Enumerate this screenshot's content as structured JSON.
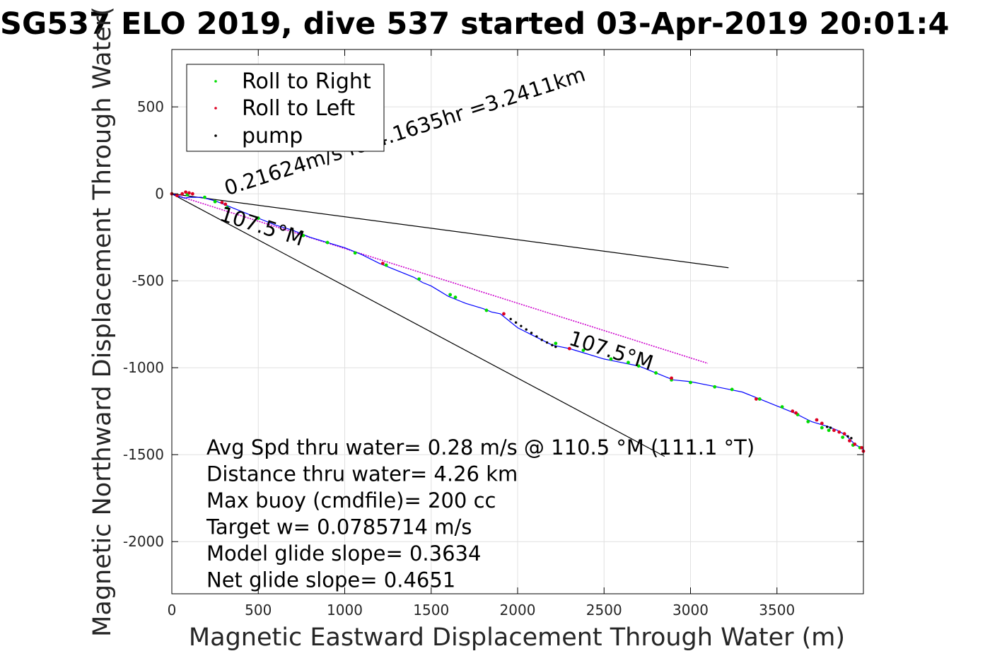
{
  "chart_data": {
    "type": "line",
    "title": "SG537 ELO 2019, dive 537 started 03-Apr-2019 20:01:4",
    "xlabel": "Magnetic Eastward Displacement Through Water (m)",
    "ylabel": "Magnetic Northward Displacement Through Water(",
    "xlim": [
      0,
      4000
    ],
    "ylim": [
      -2300,
      830
    ],
    "xticks": [
      0,
      500,
      1000,
      1500,
      2000,
      2500,
      3000,
      3500
    ],
    "xtick_labels": [
      "0",
      "500",
      "1000",
      "1500",
      "2000",
      "2500",
      "3000",
      "3500"
    ],
    "yticks": [
      500,
      0,
      -500,
      -1000,
      -1500,
      -2000
    ],
    "ytick_labels": [
      "500",
      "0",
      "-500",
      "-1000",
      "-1500",
      "-2000"
    ],
    "grid": true,
    "legend_position": "top-left",
    "colors": {
      "track": "#0000ff",
      "roll_right": "#00dd00",
      "roll_left": "#dd0022",
      "pump": "#000000",
      "heading_lines": "#000000",
      "target_line": "#cc00cc"
    },
    "legend": [
      {
        "label": "Roll to Right",
        "color": "#00dd00"
      },
      {
        "label": "Roll to Left",
        "color": "#dd0022"
      },
      {
        "label": "pump",
        "color": "#000000"
      }
    ],
    "series": [
      {
        "name": "track",
        "x": [
          0,
          40,
          75,
          100,
          130,
          170,
          250,
          300,
          400,
          500,
          600,
          700,
          800,
          900,
          1000,
          1100,
          1200,
          1300,
          1400,
          1450,
          1500,
          1550,
          1600,
          1650,
          1700,
          1800,
          1850,
          1900,
          1950,
          2000,
          2100,
          2200,
          2250,
          2300,
          2400,
          2500,
          2600,
          2700,
          2800,
          2900,
          3000,
          3100,
          3200,
          3300,
          3400,
          3500,
          3600,
          3700,
          3800,
          3850,
          3900,
          3950,
          4000
        ],
        "y": [
          0,
          -15,
          -25,
          -20,
          -20,
          -20,
          -40,
          -60,
          -100,
          -140,
          -180,
          -210,
          -250,
          -280,
          -310,
          -350,
          -400,
          -440,
          -480,
          -510,
          -530,
          -560,
          -590,
          -610,
          -630,
          -660,
          -680,
          -690,
          -730,
          -770,
          -820,
          -870,
          -880,
          -890,
          -920,
          -950,
          -970,
          -990,
          -1030,
          -1070,
          -1080,
          -1100,
          -1120,
          -1140,
          -1180,
          -1220,
          -1260,
          -1310,
          -1340,
          -1360,
          -1390,
          -1440,
          -1470
        ]
      },
      {
        "name": "Roll to Right",
        "x": [
          0,
          90,
          190,
          250,
          320,
          500,
          760,
          900,
          1060,
          1240,
          1430,
          1610,
          1640,
          1820,
          2220,
          2380,
          2540,
          2640,
          2700,
          2800,
          2890,
          3000,
          3140,
          3240,
          3400,
          3530,
          3620,
          3680,
          3760,
          3800,
          3880,
          3940,
          3980
        ],
        "y": [
          0,
          -5,
          -20,
          -45,
          -80,
          -140,
          -240,
          -280,
          -340,
          -410,
          -490,
          -580,
          -595,
          -670,
          -860,
          -900,
          -950,
          -970,
          -990,
          -1030,
          -1070,
          -1085,
          -1110,
          -1125,
          -1180,
          -1225,
          -1270,
          -1310,
          -1345,
          -1360,
          -1400,
          -1445,
          -1460
        ]
      },
      {
        "name": "Roll to Left",
        "x": [
          0,
          30,
          60,
          80,
          100,
          120,
          290,
          310,
          1220,
          1920,
          2300,
          2890,
          3380,
          3590,
          3610,
          3730,
          3760,
          3830,
          3860,
          3890,
          3920,
          3950,
          3990,
          4000
        ],
        "y": [
          0,
          -10,
          0,
          10,
          5,
          0,
          -50,
          -60,
          -400,
          -690,
          -890,
          -1060,
          -1180,
          -1250,
          -1260,
          -1300,
          -1320,
          -1360,
          -1370,
          -1380,
          -1420,
          -1440,
          -1460,
          -1480
        ]
      },
      {
        "name": "pump",
        "x": [
          1960,
          1990,
          2020,
          2050,
          2080,
          2110,
          2140,
          2170,
          2200,
          2220,
          3790,
          3810,
          3910,
          3930
        ],
        "y": [
          -720,
          -740,
          -760,
          -780,
          -800,
          -820,
          -840,
          -855,
          -870,
          -880,
          -1340,
          -1345,
          -1395,
          -1405
        ]
      }
    ],
    "reference_lines": [
      {
        "name": "heading-line-upper",
        "x": [
          0,
          3220
        ],
        "y": [
          0,
          -425
        ]
      },
      {
        "name": "heading-line-lower",
        "x": [
          0,
          2850
        ],
        "y": [
          0,
          -1510
        ]
      },
      {
        "name": "target-course-line",
        "x": [
          0,
          3100
        ],
        "y": [
          0,
          -975
        ]
      }
    ],
    "annotations": [
      {
        "text": "0.21624m/s for4.1635hr =3.2411km",
        "x": 320,
        "y": -10,
        "rotation": -17.8
      },
      {
        "text": "107.5°M",
        "x": 270,
        "y": -150,
        "rotation": 17.6
      },
      {
        "text": "107.5°M",
        "x": 2290,
        "y": -865,
        "rotation": 17.6
      }
    ],
    "stats_text": [
      "Avg Spd thru water=  0.28 m/s @ 110.5 °M (111.1 °T)",
      "Distance thru water=  4.26 km",
      "Max buoy (cmdfile)= 200 cc",
      "Target w= 0.0785714 m/s",
      "Model glide slope= 0.3634",
      "Net glide slope= 0.4651"
    ]
  }
}
